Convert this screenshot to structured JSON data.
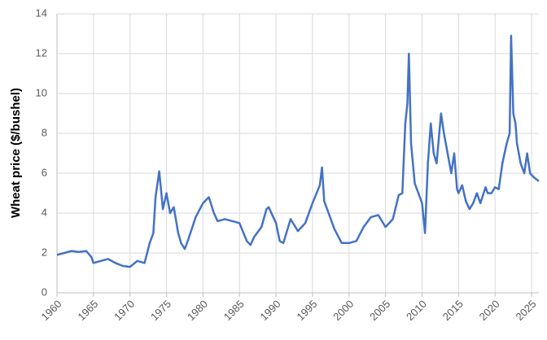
{
  "chart_data": {
    "type": "line",
    "y_label": "Wheat price ($/bushel)",
    "x": [
      1960,
      1961,
      1962,
      1963,
      1964,
      1964.7,
      1965,
      1966,
      1967,
      1968,
      1969,
      1970,
      1971,
      1972,
      1972.7,
      1973.2,
      1973.5,
      1974,
      1974.5,
      1975,
      1975.5,
      1976,
      1976.6,
      1977,
      1977.5,
      1978,
      1979,
      1980,
      1980.8,
      1981.5,
      1982,
      1983,
      1984,
      1985,
      1986,
      1986.5,
      1987,
      1988,
      1988.7,
      1989,
      1990,
      1990.5,
      1991,
      1992,
      1993,
      1994,
      1995,
      1996,
      1996.3,
      1996.6,
      1997,
      1998,
      1999,
      2000,
      2001,
      2002,
      2003,
      2004,
      2005,
      2006,
      2006.8,
      2007.3,
      2007.7,
      2008,
      2008.2,
      2008.5,
      2009,
      2009.5,
      2010,
      2010.4,
      2010.8,
      2011.2,
      2011.6,
      2012,
      2012.6,
      2013,
      2013.5,
      2014,
      2014.4,
      2014.8,
      2015,
      2015.5,
      2016,
      2016.5,
      2017,
      2017.5,
      2018,
      2018.7,
      2019,
      2019.5,
      2020,
      2020.5,
      2021,
      2021.6,
      2022,
      2022.2,
      2022.5,
      2022.8,
      2023,
      2023.5,
      2024,
      2024.4,
      2024.8,
      2025.3,
      2026
    ],
    "series": [
      {
        "color": "#4472c4",
        "values": [
          1.9,
          2.0,
          2.1,
          2.05,
          2.1,
          1.8,
          1.5,
          1.6,
          1.7,
          1.5,
          1.35,
          1.3,
          1.6,
          1.5,
          2.5,
          3.0,
          4.8,
          6.1,
          4.2,
          5.0,
          4.0,
          4.3,
          3.0,
          2.5,
          2.2,
          2.7,
          3.8,
          4.5,
          4.8,
          4.0,
          3.6,
          3.7,
          3.6,
          3.5,
          2.6,
          2.4,
          2.8,
          3.3,
          4.2,
          4.3,
          3.5,
          2.6,
          2.5,
          3.7,
          3.1,
          3.5,
          4.5,
          5.4,
          6.3,
          4.6,
          4.2,
          3.2,
          2.5,
          2.5,
          2.6,
          3.3,
          3.8,
          3.9,
          3.3,
          3.7,
          4.9,
          5.0,
          8.5,
          9.5,
          12.0,
          7.5,
          5.5,
          5.0,
          4.5,
          3.0,
          6.5,
          8.5,
          7.0,
          6.5,
          9.0,
          8.0,
          7.0,
          6.0,
          7.0,
          5.2,
          5.0,
          5.4,
          4.6,
          4.2,
          4.5,
          5.0,
          4.5,
          5.3,
          5.0,
          5.0,
          5.3,
          5.2,
          6.5,
          7.5,
          8.0,
          12.9,
          9.0,
          8.5,
          7.5,
          6.5,
          6.0,
          7.0,
          6.0,
          5.8,
          5.6
        ]
      }
    ],
    "xlim": [
      1960,
      2026
    ],
    "xticks": [
      1960,
      1965,
      1970,
      1975,
      1980,
      1985,
      1990,
      1995,
      2000,
      2005,
      2010,
      2015,
      2020,
      2025
    ],
    "ylim": [
      0,
      14
    ],
    "yticks": [
      0,
      2,
      4,
      6,
      8,
      10,
      12,
      14
    ],
    "grid": true
  }
}
